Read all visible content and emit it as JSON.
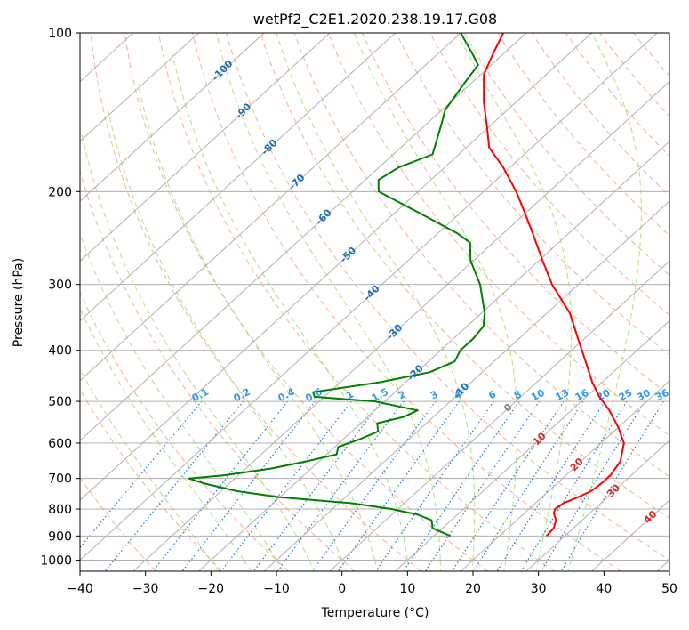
{
  "chart_data": {
    "type": "line",
    "title": "wetPf2_C2E1.2020.238.19.17.G08",
    "xlabel": "Temperature (°C)",
    "ylabel": "Pressure (hPa)",
    "xlim": [
      -40,
      50
    ],
    "ylim": [
      1050,
      100
    ],
    "y_scale": "log",
    "x_ticks": [
      -40,
      -30,
      -20,
      -10,
      0,
      10,
      20,
      30,
      40,
      50
    ],
    "y_ticks": [
      100,
      200,
      300,
      400,
      500,
      600,
      700,
      800,
      900,
      1000
    ],
    "grid": true,
    "series": [
      {
        "color": "#ff0000",
        "pressure": [
          900,
          870,
          840,
          815,
          800,
          780,
          760,
          740,
          715,
          690,
          650,
          600,
          560,
          520,
          490,
          460,
          420,
          380,
          340,
          300,
          270,
          240,
          220,
          200,
          180,
          165,
          150,
          135,
          120,
          110,
          100
        ],
        "values": [
          27.2,
          27.0,
          26.0,
          24.5,
          24.0,
          24.3,
          25.5,
          26.5,
          26.8,
          26.8,
          26.0,
          23.5,
          20.0,
          15.8,
          12.0,
          8.5,
          4.0,
          -1.0,
          -6.5,
          -14.0,
          -19.5,
          -25.5,
          -30.0,
          -35.0,
          -41.0,
          -46.5,
          -50.5,
          -55.0,
          -59.5,
          -61.5,
          -63.5
        ]
      },
      {
        "color": "#008000",
        "pressure": [
          900,
          870,
          840,
          820,
          800,
          780,
          760,
          740,
          715,
          700,
          690,
          670,
          650,
          630,
          610,
          590,
          570,
          550,
          535,
          520,
          500,
          490,
          480,
          460,
          440,
          420,
          400,
          380,
          360,
          340,
          300,
          270,
          250,
          240,
          220,
          200,
          190,
          180,
          170,
          150,
          140,
          125,
          115,
          110,
          100
        ],
        "values": [
          12.5,
          8.5,
          7.0,
          4.0,
          -1.0,
          -8.0,
          -20.0,
          -27.5,
          -34.0,
          -37.0,
          -32.0,
          -26.0,
          -22.0,
          -18.5,
          -19.5,
          -17.5,
          -16.0,
          -17.5,
          -14.5,
          -13.5,
          -21.5,
          -31.5,
          -32.5,
          -24.0,
          -18.0,
          -16.0,
          -17.0,
          -17.0,
          -17.5,
          -19.5,
          -25.0,
          -30.5,
          -33.5,
          -37.0,
          -46.0,
          -56.0,
          -58.0,
          -57.0,
          -54.0,
          -57.5,
          -59.5,
          -61.0,
          -62.0,
          -64.5,
          -70.0
        ]
      }
    ],
    "isotherm_labels": [
      "-100",
      "-90",
      "-80",
      "-70",
      "-60",
      "-50",
      "-40",
      "-30",
      "-20",
      "-10",
      "0",
      "10",
      "20",
      "30",
      "40"
    ],
    "isotherm_values": [
      -100,
      -90,
      -80,
      -70,
      -60,
      -50,
      -40,
      -30,
      -20,
      -10,
      0,
      10,
      20,
      30,
      40
    ],
    "mixing_ratio_labels": [
      "0.1",
      "0.2",
      "0.4",
      "0.6",
      "1",
      "1.5",
      "2",
      "3",
      "4",
      "6",
      "8",
      "10",
      "13",
      "16",
      "20",
      "25",
      "30",
      "36"
    ],
    "mixing_ratio_values": [
      0.1,
      0.2,
      0.4,
      0.6,
      1,
      1.5,
      2,
      3,
      4,
      6,
      8,
      10,
      13,
      16,
      20,
      25,
      30,
      36
    ],
    "colors": {
      "temperature": "#ff0000",
      "dewpoint": "#008000",
      "grid": "#b0b0b0",
      "dry_adiabat": "#f4a582",
      "moist_adiabat": "#a6d96a",
      "mixing_ratio": "#1f78d1",
      "isotherm_cold": "#1f6fb4",
      "isotherm_zero": "#808080",
      "isotherm_warm": "#d62728"
    }
  }
}
